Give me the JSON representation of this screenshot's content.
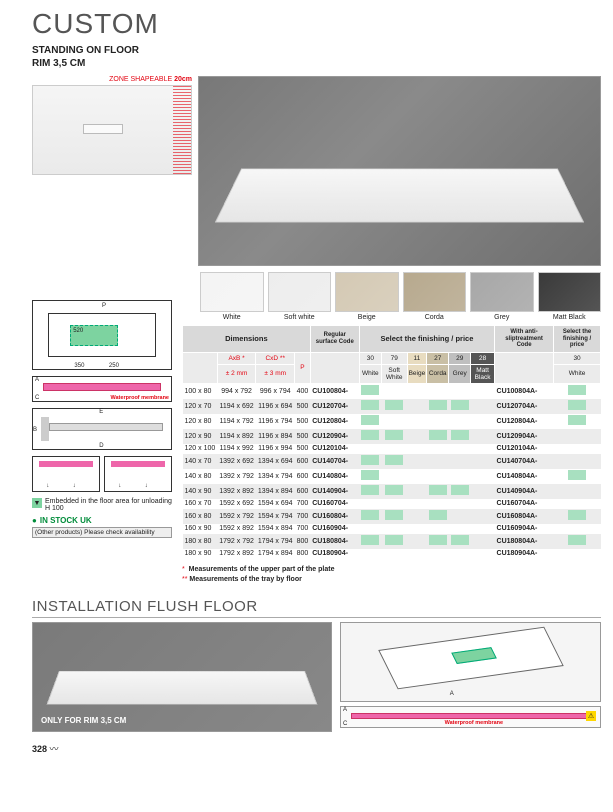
{
  "title": "CUSTOM",
  "subtitle_l1": "STANDING ON FLOOR",
  "subtitle_l2": "RIM 3,5 CM",
  "zone_label": "ZONE SHAPEABLE",
  "zone_val": "20cm",
  "swatches": [
    {
      "label": "White",
      "color": "#f4f4f4"
    },
    {
      "label": "Soft white",
      "color": "#ededed"
    },
    {
      "label": "Beige",
      "color": "#d4c9b4"
    },
    {
      "label": "Corda",
      "color": "#b7a98e"
    },
    {
      "label": "Grey",
      "color": "#a7a7a7"
    },
    {
      "label": "Matt Black",
      "color": "#3a3a3a"
    }
  ],
  "headers": {
    "dim": "Dimensions",
    "regcode": "Regular surface Code",
    "finish": "Select the finishing / price",
    "anti": "With anti-sliptreatment Code",
    "finish2": "Select the finishing / price",
    "axb": "AxB *",
    "axb2": "± 2 mm",
    "cxd": "CxD **",
    "cxd2": "± 3 mm",
    "p": "P",
    "codes": [
      "30",
      "79",
      "11",
      "27",
      "29",
      "28"
    ],
    "codelabels": [
      "White",
      "Soft White",
      "Beige",
      "Corda",
      "Grey",
      "Matt Black"
    ],
    "code2": "30",
    "code2label": "White"
  },
  "rows": [
    {
      "d": "100 x 80",
      "ab": "994 x 792",
      "cd": "996 x 794",
      "p": "400",
      "code": "CU100804-",
      "g": [
        1,
        0,
        0,
        0,
        0,
        0
      ],
      "code2": "CU100804A-",
      "g2": 1,
      "shade": 0
    },
    {
      "d": "120 x 70",
      "ab": "1194 x 692",
      "cd": "1196 x 694",
      "p": "500",
      "code": "CU120704-",
      "g": [
        1,
        1,
        0,
        1,
        1,
        0
      ],
      "code2": "CU120704A-",
      "g2": 1,
      "shade": 1
    },
    {
      "d": "120 x 80",
      "ab": "1194 x 792",
      "cd": "1196 x 794",
      "p": "500",
      "code": "CU120804-",
      "g": [
        1,
        0,
        0,
        0,
        0,
        0
      ],
      "code2": "CU120804A-",
      "g2": 1,
      "shade": 0
    },
    {
      "d": "120 x 90",
      "ab": "1194 x 892",
      "cd": "1196 x 894",
      "p": "500",
      "code": "CU120904-",
      "g": [
        1,
        1,
        0,
        1,
        1,
        0
      ],
      "code2": "CU120904A-",
      "g2": 0,
      "shade": 1
    },
    {
      "d": "120 x 100",
      "ab": "1194 x 992",
      "cd": "1196 x 994",
      "p": "500",
      "code": "CU120104-",
      "g": [
        0,
        0,
        0,
        0,
        0,
        0
      ],
      "code2": "CU120104A-",
      "g2": 0,
      "shade": 0
    },
    {
      "d": "140 x 70",
      "ab": "1392 x 692",
      "cd": "1394 x 694",
      "p": "600",
      "code": "CU140704-",
      "g": [
        1,
        1,
        0,
        0,
        0,
        0
      ],
      "code2": "CU140704A-",
      "g2": 0,
      "shade": 1
    },
    {
      "d": "140 x 80",
      "ab": "1392 x 792",
      "cd": "1394 x 794",
      "p": "600",
      "code": "CU140804-",
      "g": [
        1,
        0,
        0,
        0,
        0,
        0
      ],
      "code2": "CU140804A-",
      "g2": 1,
      "shade": 0
    },
    {
      "d": "140 x 90",
      "ab": "1392 x 892",
      "cd": "1394 x 894",
      "p": "600",
      "code": "CU140904-",
      "g": [
        1,
        1,
        0,
        1,
        1,
        0
      ],
      "code2": "CU140904A-",
      "g2": 0,
      "shade": 1
    },
    {
      "d": "160 x 70",
      "ab": "1592 x 692",
      "cd": "1594 x 694",
      "p": "700",
      "code": "CU160704-",
      "g": [
        0,
        0,
        0,
        0,
        0,
        0
      ],
      "code2": "CU160704A-",
      "g2": 0,
      "shade": 0
    },
    {
      "d": "160 x 80",
      "ab": "1592 x 792",
      "cd": "1594 x 794",
      "p": "700",
      "code": "CU160804-",
      "g": [
        1,
        1,
        0,
        1,
        0,
        0
      ],
      "code2": "CU160804A-",
      "g2": 1,
      "shade": 1
    },
    {
      "d": "160 x 90",
      "ab": "1592 x 892",
      "cd": "1594 x 894",
      "p": "700",
      "code": "CU160904-",
      "g": [
        0,
        0,
        0,
        0,
        0,
        0
      ],
      "code2": "CU160904A-",
      "g2": 0,
      "shade": 0
    },
    {
      "d": "180 x 80",
      "ab": "1792 x 792",
      "cd": "1794 x 794",
      "p": "800",
      "code": "CU180804-",
      "g": [
        1,
        1,
        0,
        1,
        1,
        0
      ],
      "code2": "CU180804A-",
      "g2": 1,
      "shade": 1
    },
    {
      "d": "180 x 90",
      "ab": "1792 x 892",
      "cd": "1794 x 894",
      "p": "800",
      "code": "CU180904-",
      "g": [
        0,
        0,
        0,
        0,
        0,
        0
      ],
      "code2": "CU180904A-",
      "g2": 0,
      "shade": 0
    }
  ],
  "legend1": "Measurements of the upper part of the plate",
  "legend2": "Measurements of the tray by floor",
  "embedded": "Embedded in the floor area for unloading H 100",
  "stock": "IN STOCK UK",
  "other": "(Other products) Please check availability",
  "inst_title": "INSTALLATION FLUSH FLOOR",
  "inst_cap": "ONLY FOR RIM 3,5 CM",
  "waterproof": "Waterproof membrane",
  "pagenum": "328"
}
